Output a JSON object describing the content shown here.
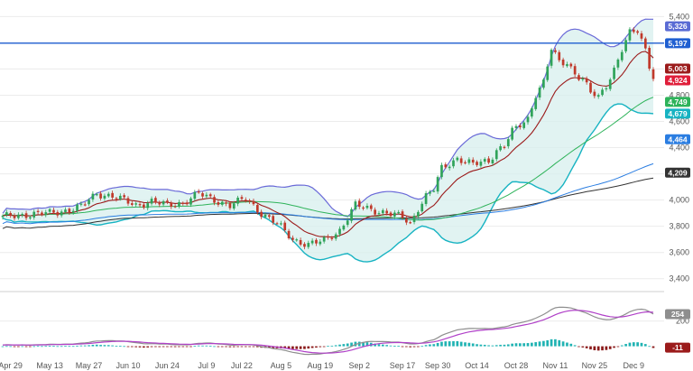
{
  "chart_data": {
    "type": "candlestick",
    "price_ticks": [
      "5,400",
      "5,200",
      "5,000",
      "4,800",
      "4,600",
      "4,400",
      "4,200",
      "4,000",
      "3,800",
      "3,600",
      "3,400"
    ],
    "price_ylim": [
      3350,
      5430
    ],
    "x_ticks": [
      {
        "label": "Apr 29",
        "i": 2
      },
      {
        "label": "May 13",
        "i": 12
      },
      {
        "label": "May 27",
        "i": 22
      },
      {
        "label": "Jun 10",
        "i": 32
      },
      {
        "label": "Jun 24",
        "i": 42
      },
      {
        "label": "Jul 9",
        "i": 52
      },
      {
        "label": "Jul 22",
        "i": 61
      },
      {
        "label": "Aug 5",
        "i": 71
      },
      {
        "label": "Aug 19",
        "i": 81
      },
      {
        "label": "Sep 2",
        "i": 91
      },
      {
        "label": "Sep 17",
        "i": 102
      },
      {
        "label": "Sep 30",
        "i": 111
      },
      {
        "label": "Oct 14",
        "i": 121
      },
      {
        "label": "Oct 28",
        "i": 131
      },
      {
        "label": "Nov 11",
        "i": 141
      },
      {
        "label": "Nov 25",
        "i": 151
      },
      {
        "label": "Dec 9",
        "i": 161
      }
    ],
    "horizontal_line": {
      "value": 5197,
      "label": "5,197",
      "color": "#1f5fd1"
    },
    "badges": [
      {
        "label": "5,326",
        "value": 5326,
        "color": "#5a6bd4"
      },
      {
        "label": "5,197",
        "value": 5197,
        "color": "#1f5fd1"
      },
      {
        "label": "5,003",
        "value": 5003,
        "color": "#9b1b1b"
      },
      {
        "label": "4,924",
        "value": 4924,
        "color": "#e01e3a"
      },
      {
        "label": "4,749",
        "value": 4749,
        "color": "#2eb35a"
      },
      {
        "label": "4,679",
        "value": 4679,
        "color": "#17b3c2"
      },
      {
        "label": "4,464",
        "value": 4464,
        "color": "#2a7de1"
      },
      {
        "label": "4,209",
        "value": 4209,
        "color": "#333333"
      }
    ],
    "macd": {
      "ticks": [
        "200"
      ],
      "ylim": [
        -60,
        340
      ],
      "badges": [
        {
          "label": "254",
          "value": 254,
          "color": "#8e8e8e"
        },
        {
          "label": "-11",
          "value": -11,
          "color": "#9b1b1b"
        }
      ]
    },
    "colors": {
      "up": "#2fa35a",
      "down": "#c0392b",
      "bollinger": "#6a6ad8",
      "band_fill": "#d7efee",
      "lower_band": "#17b3c2",
      "ma_red": "#9b1b1b",
      "ma_green": "#2eb35a",
      "ma_blue": "#2a7de1",
      "ma_black": "#333333",
      "macd_line": "#8e8e8e",
      "signal_line": "#b040c8",
      "hist_up": "#20b3b3",
      "hist_down": "#8b1a1a"
    },
    "close_anchors": [
      [
        0,
        3870
      ],
      [
        6,
        3890
      ],
      [
        12,
        3900
      ],
      [
        16,
        3920
      ],
      [
        20,
        3950
      ],
      [
        24,
        4050
      ],
      [
        28,
        4030
      ],
      [
        34,
        3960
      ],
      [
        38,
        3990
      ],
      [
        42,
        3960
      ],
      [
        46,
        3980
      ],
      [
        50,
        4050
      ],
      [
        53,
        4010
      ],
      [
        58,
        3960
      ],
      [
        62,
        4010
      ],
      [
        66,
        3900
      ],
      [
        70,
        3820
      ],
      [
        74,
        3700
      ],
      [
        78,
        3660
      ],
      [
        82,
        3690
      ],
      [
        86,
        3770
      ],
      [
        90,
        3960
      ],
      [
        94,
        3930
      ],
      [
        98,
        3900
      ],
      [
        102,
        3870
      ],
      [
        104,
        3820
      ],
      [
        106,
        3940
      ],
      [
        108,
        4030
      ],
      [
        110,
        4080
      ],
      [
        112,
        4240
      ],
      [
        116,
        4320
      ],
      [
        120,
        4270
      ],
      [
        124,
        4300
      ],
      [
        126,
        4380
      ],
      [
        128,
        4420
      ],
      [
        130,
        4520
      ],
      [
        134,
        4620
      ],
      [
        136,
        4810
      ],
      [
        138,
        4900
      ],
      [
        140,
        5150
      ],
      [
        142,
        5050
      ],
      [
        144,
        5050
      ],
      [
        146,
        4970
      ],
      [
        148,
        4920
      ],
      [
        150,
        4820
      ],
      [
        152,
        4780
      ],
      [
        154,
        4880
      ],
      [
        156,
        5000
      ],
      [
        158,
        5150
      ],
      [
        160,
        5270
      ],
      [
        162,
        5290
      ],
      [
        164,
        5150
      ],
      [
        165,
        5003
      ],
      [
        166,
        4924
      ]
    ]
  }
}
